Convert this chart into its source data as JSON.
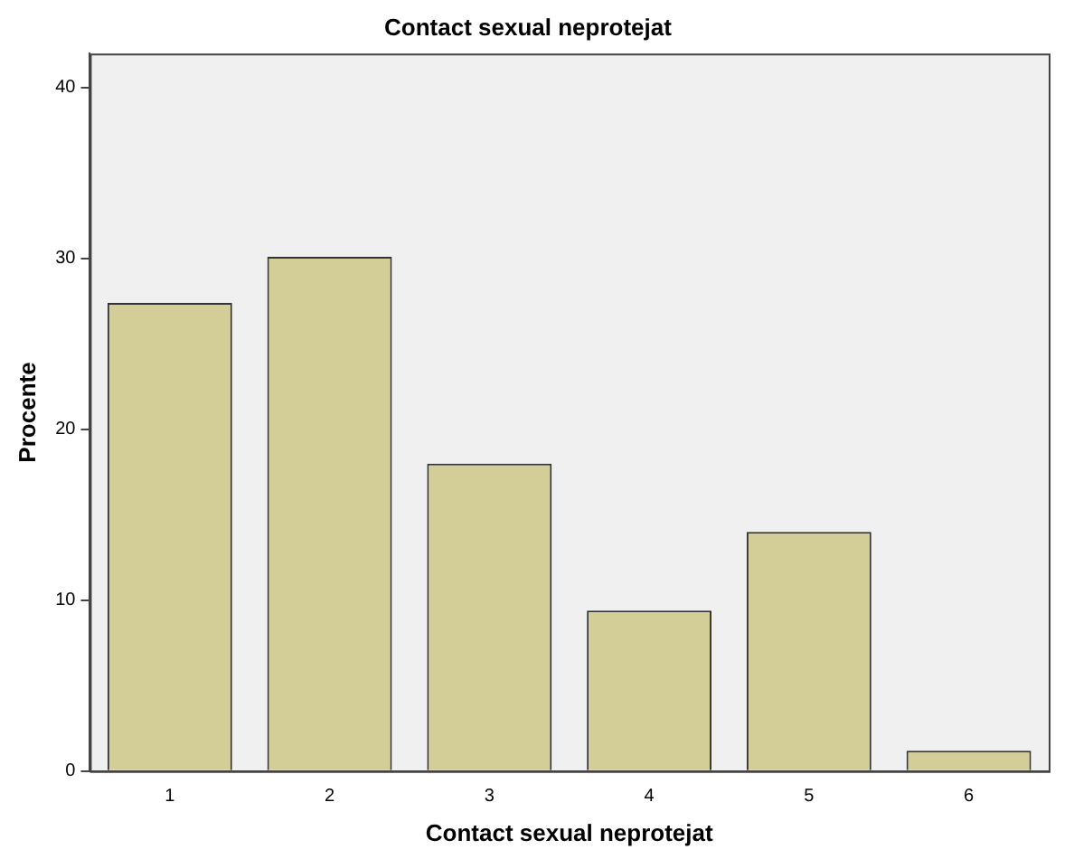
{
  "chart_data": {
    "type": "bar",
    "title": "Contact sexual neprotejat",
    "xlabel": "Contact sexual neprotejat",
    "ylabel": "Procente",
    "categories": [
      "1",
      "2",
      "3",
      "4",
      "5",
      "6"
    ],
    "values": [
      27.4,
      30.1,
      18.0,
      9.4,
      14.0,
      1.2
    ],
    "color": "#d3ce98",
    "ylim": [
      0,
      42
    ],
    "yticks": [
      0,
      10,
      20,
      30,
      40
    ],
    "grid": false,
    "legend": false
  }
}
